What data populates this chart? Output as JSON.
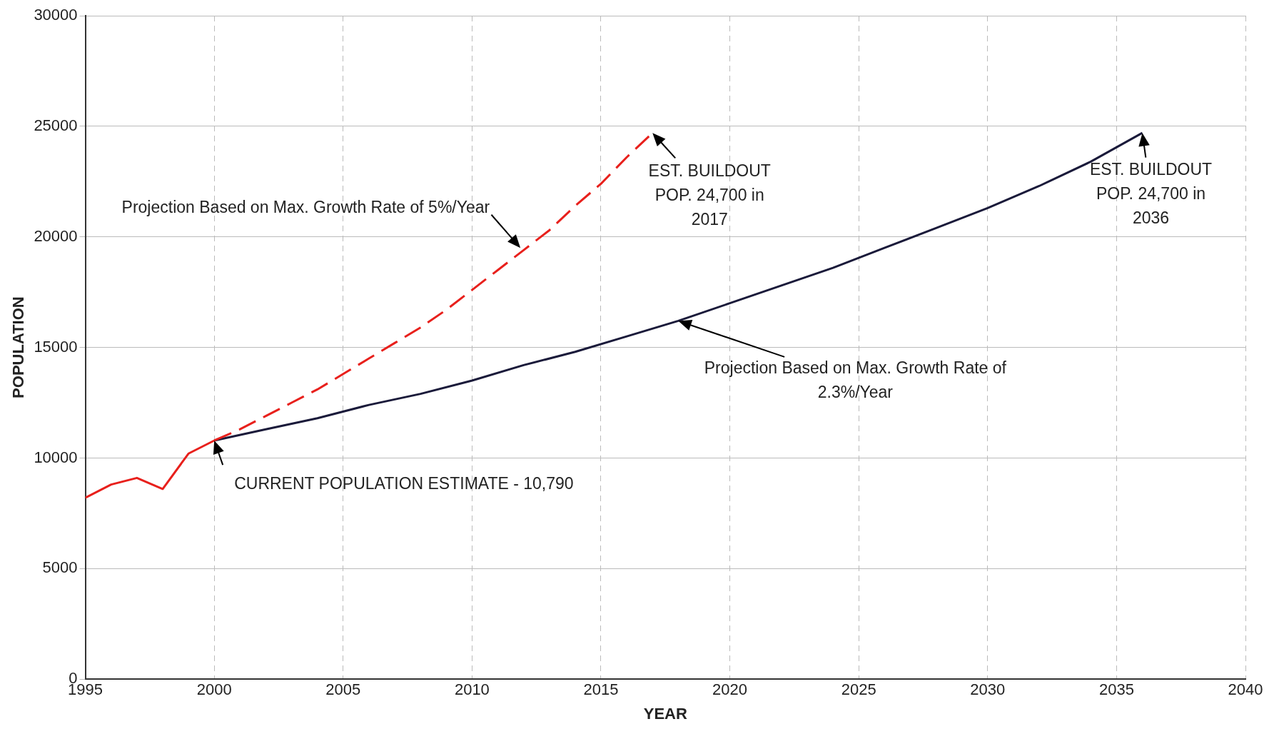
{
  "chart_data": {
    "type": "line",
    "xlabel": "YEAR",
    "ylabel": "POPULATION",
    "xlim": [
      1995,
      2040
    ],
    "xticks": [
      1995,
      2000,
      2005,
      2010,
      2015,
      2020,
      2025,
      2030,
      2035,
      2040
    ],
    "ylim": [
      0,
      30000
    ],
    "yticks": [
      0,
      5000,
      10000,
      15000,
      20000,
      25000,
      30000
    ],
    "grid": true,
    "legend": false,
    "marker": "none",
    "series": [
      {
        "color": "#e8201c",
        "line_style": "solid",
        "x": [
          1995,
          1996,
          1997,
          1998,
          1999,
          2000
        ],
        "values": [
          8200,
          8800,
          9100,
          8600,
          10200,
          10790
        ]
      },
      {
        "color": "#e8201c",
        "line_style": "dashed",
        "x": [
          2000,
          2001,
          2002,
          2003,
          2004,
          2005,
          2006,
          2007,
          2008,
          2009,
          2010,
          2011,
          2012,
          2013,
          2014,
          2015,
          2016,
          2017
        ],
        "values": [
          10790,
          11300,
          11900,
          12500,
          13100,
          13800,
          14500,
          15200,
          15900,
          16700,
          17600,
          18500,
          19400,
          20300,
          21400,
          22400,
          23600,
          24700
        ]
      },
      {
        "color": "#1a1a3a",
        "line_style": "solid",
        "x": [
          2000,
          2002,
          2004,
          2006,
          2008,
          2010,
          2012,
          2014,
          2016,
          2018,
          2020,
          2022,
          2024,
          2026,
          2028,
          2030,
          2032,
          2034,
          2036
        ],
        "values": [
          10790,
          11300,
          11800,
          12400,
          12900,
          13500,
          14200,
          14800,
          15500,
          16200,
          17000,
          17800,
          18600,
          19500,
          20400,
          21300,
          22300,
          23400,
          24700
        ]
      }
    ],
    "annotations": [
      {
        "text": "CURRENT POPULATION ESTIMATE - 10,790",
        "x": 2000,
        "y": 10790
      },
      {
        "text": "EST. BUILDOUT\nPOP. 24,700 in\n2017",
        "x": 2017,
        "y": 24700
      },
      {
        "text": "EST. BUILDOUT\nPOP. 24,700 in\n2036",
        "x": 2036,
        "y": 24700
      },
      "Projection Based on Max. Growth Rate of 5%/Year",
      {
        "text": "Projection Based on Max. Growth Rate of\n2.3%/Year",
        "x": 2018,
        "y": 16200
      }
    ]
  }
}
